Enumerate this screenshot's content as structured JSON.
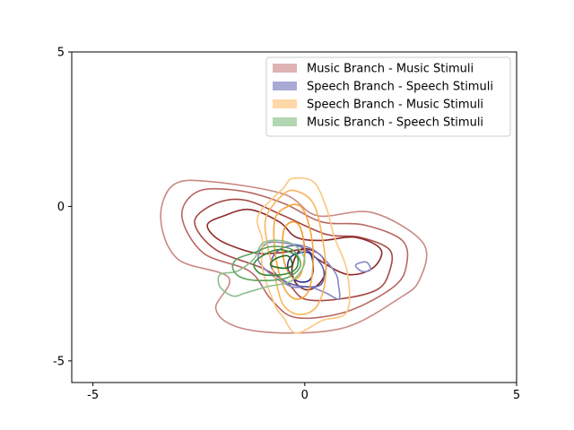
{
  "chart_data": {
    "type": "contour",
    "title": "",
    "xlabel": "",
    "ylabel": "",
    "xlim": [
      -5.5,
      5
    ],
    "ylim": [
      -5.7,
      5
    ],
    "xticks": [
      {
        "value": -5,
        "label": "-5"
      },
      {
        "value": 0,
        "label": "0"
      },
      {
        "value": 5,
        "label": "5"
      }
    ],
    "yticks": [
      {
        "value": 5,
        "label": "5"
      },
      {
        "value": 0,
        "label": "0"
      },
      {
        "value": -5,
        "label": "-5"
      }
    ],
    "grid": false,
    "legend_position": "upper-right",
    "series": [
      {
        "name": "Music Branch - Music Stimuli",
        "legend_color": "#dfb3b3",
        "levels": [
          {
            "color": "#c98985",
            "points": [
              [
                -3.4,
                -0.4
              ],
              [
                -3.1,
                0.7
              ],
              [
                -2.2,
                0.8
              ],
              [
                -0.5,
                0.4
              ],
              [
                0.3,
                -0.3
              ],
              [
                1.6,
                -0.2
              ],
              [
                2.8,
                -1.2
              ],
              [
                2.7,
                -2.4
              ],
              [
                2.2,
                -3.0
              ],
              [
                1.0,
                -3.9
              ],
              [
                -0.4,
                -4.1
              ],
              [
                -1.6,
                -3.9
              ],
              [
                -2.1,
                -3.3
              ],
              [
                -1.8,
                -2.3
              ],
              [
                -3.0,
                -1.7
              ]
            ]
          },
          {
            "color": "#b86762",
            "points": [
              [
                -2.9,
                -0.3
              ],
              [
                -2.5,
                0.5
              ],
              [
                -1.5,
                0.5
              ],
              [
                -0.5,
                0.1
              ],
              [
                0.4,
                -0.5
              ],
              [
                1.4,
                -0.6
              ],
              [
                2.3,
                -1.1
              ],
              [
                2.4,
                -1.9
              ],
              [
                2.1,
                -2.6
              ],
              [
                1.0,
                -3.4
              ],
              [
                -0.2,
                -3.6
              ],
              [
                -0.8,
                -3.0
              ],
              [
                -1.3,
                -2.1
              ],
              [
                -2.4,
                -1.5
              ]
            ]
          },
          {
            "color": "#a54944",
            "points": [
              [
                -2.6,
                -0.5
              ],
              [
                -2.1,
                0.1
              ],
              [
                -1.4,
                0.2
              ],
              [
                -0.5,
                -0.3
              ],
              [
                0.5,
                -0.9
              ],
              [
                1.3,
                -1.0
              ],
              [
                2.0,
                -1.4
              ],
              [
                2.0,
                -2.1
              ],
              [
                1.7,
                -2.7
              ],
              [
                0.8,
                -3.0
              ],
              [
                0.0,
                -3.0
              ],
              [
                -0.4,
                -2.5
              ],
              [
                -1.0,
                -2.0
              ],
              [
                -2.1,
                -1.4
              ]
            ]
          },
          {
            "color": "#8e2a2a",
            "points": [
              [
                -2.3,
                -0.6
              ],
              [
                -1.9,
                -0.3
              ],
              [
                -1.3,
                -0.1
              ],
              [
                -0.6,
                -0.5
              ],
              [
                -0.2,
                -1.0
              ],
              [
                0.4,
                -1.1
              ],
              [
                1.2,
                -1.0
              ],
              [
                1.8,
                -1.4
              ],
              [
                1.6,
                -2.0
              ],
              [
                1.0,
                -2.2
              ],
              [
                0.3,
                -1.7
              ],
              [
                0.0,
                -1.4
              ],
              [
                -0.6,
                -1.5
              ],
              [
                -1.2,
                -1.5
              ],
              [
                -2.0,
                -1.1
              ]
            ]
          },
          {
            "color": "#7e1d1d",
            "points": [
              [
                -0.1,
                -1.4
              ],
              [
                0.3,
                -1.5
              ],
              [
                0.5,
                -1.9
              ],
              [
                0.4,
                -2.4
              ],
              [
                0.1,
                -2.7
              ],
              [
                -0.2,
                -2.5
              ],
              [
                -0.3,
                -2.0
              ]
            ]
          }
        ]
      },
      {
        "name": "Speech Branch - Speech Stimuli",
        "legend_color": "#a9a9d6",
        "levels": [
          {
            "color": "#8787c4",
            "points": [
              [
                -0.9,
                -1.2
              ],
              [
                -0.4,
                -1.2
              ],
              [
                0.2,
                -1.4
              ],
              [
                0.7,
                -2.1
              ],
              [
                0.8,
                -2.6
              ],
              [
                0.8,
                -3.0
              ],
              [
                0.5,
                -2.8
              ],
              [
                0.1,
                -2.6
              ],
              [
                -0.3,
                -2.6
              ],
              [
                -0.8,
                -2.2
              ],
              [
                -1.1,
                -1.7
              ]
            ]
          },
          {
            "color": "#5d5db0",
            "points": [
              [
                -0.6,
                -1.4
              ],
              [
                -0.1,
                -1.3
              ],
              [
                0.4,
                -1.9
              ],
              [
                0.4,
                -2.5
              ],
              [
                0.0,
                -2.6
              ],
              [
                -0.5,
                -2.4
              ],
              [
                -0.8,
                -1.9
              ]
            ]
          },
          {
            "color": "#2d2d8c",
            "points": [
              [
                -0.3,
                -1.6
              ],
              [
                0.1,
                -1.5
              ],
              [
                0.2,
                -2.0
              ],
              [
                0.1,
                -2.4
              ],
              [
                -0.2,
                -2.4
              ],
              [
                -0.4,
                -2.0
              ]
            ]
          },
          {
            "color": "#8787c4",
            "points": [
              [
                1.2,
                -1.9
              ],
              [
                1.45,
                -1.8
              ],
              [
                1.55,
                -2.05
              ],
              [
                1.35,
                -2.1
              ]
            ]
          }
        ]
      },
      {
        "name": "Speech Branch - Music Stimuli",
        "legend_color": "#ffd8a8",
        "levels": [
          {
            "color": "#fdc680",
            "points": [
              [
                -1.1,
                -0.3
              ],
              [
                -0.5,
                0.6
              ],
              [
                -0.3,
                0.9
              ],
              [
                0.2,
                0.8
              ],
              [
                0.5,
                0.0
              ],
              [
                0.7,
                -1.0
              ],
              [
                1.0,
                -2.1
              ],
              [
                1.0,
                -3.4
              ],
              [
                0.4,
                -3.7
              ],
              [
                -0.2,
                -4.1
              ],
              [
                -0.5,
                -3.6
              ],
              [
                -0.7,
                -3.2
              ],
              [
                -1.0,
                -2.0
              ],
              [
                -1.0,
                -1.1
              ]
            ]
          },
          {
            "color": "#fbb55a",
            "points": [
              [
                -0.9,
                -0.3
              ],
              [
                -0.5,
                0.4
              ],
              [
                -0.2,
                0.5
              ],
              [
                0.2,
                0.1
              ],
              [
                0.4,
                -0.9
              ],
              [
                0.5,
                -2.2
              ],
              [
                0.3,
                -3.2
              ],
              [
                -0.1,
                -3.5
              ],
              [
                -0.5,
                -3.2
              ],
              [
                -0.7,
                -2.3
              ],
              [
                -0.9,
                -1.1
              ]
            ]
          },
          {
            "color": "#f9a63c",
            "points": [
              [
                -0.7,
                -0.4
              ],
              [
                -0.4,
                0.0
              ],
              [
                -0.1,
                0.0
              ],
              [
                0.1,
                -0.6
              ],
              [
                0.2,
                -1.6
              ],
              [
                0.1,
                -2.7
              ],
              [
                -0.2,
                -3.0
              ],
              [
                -0.5,
                -2.6
              ],
              [
                -0.7,
                -1.5
              ]
            ]
          },
          {
            "color": "#f59a2c",
            "points": [
              [
                -0.5,
                -0.8
              ],
              [
                -0.3,
                -0.5
              ],
              [
                -0.1,
                -0.7
              ],
              [
                0.0,
                -1.5
              ],
              [
                -0.1,
                -2.2
              ],
              [
                -0.3,
                -2.3
              ],
              [
                -0.5,
                -1.7
              ]
            ]
          }
        ]
      },
      {
        "name": "Music Branch - Speech Stimuli",
        "legend_color": "#b3d6b3",
        "levels": [
          {
            "color": "#8bbf8b",
            "points": [
              [
                -2.0,
                -2.2
              ],
              [
                -1.6,
                -2.1
              ],
              [
                -1.2,
                -1.7
              ],
              [
                -1.0,
                -1.2
              ],
              [
                -0.6,
                -1.1
              ],
              [
                -0.2,
                -1.3
              ],
              [
                0.0,
                -1.8
              ],
              [
                -0.3,
                -2.4
              ],
              [
                -0.9,
                -2.6
              ],
              [
                -1.4,
                -2.8
              ],
              [
                -1.7,
                -2.9
              ],
              [
                -2.0,
                -2.6
              ]
            ]
          },
          {
            "color": "#5ea45e",
            "points": [
              [
                -1.6,
                -1.7
              ],
              [
                -1.2,
                -1.5
              ],
              [
                -0.8,
                -1.3
              ],
              [
                -0.3,
                -1.4
              ],
              [
                -0.1,
                -1.9
              ],
              [
                -0.4,
                -2.3
              ],
              [
                -1.0,
                -2.4
              ],
              [
                -1.5,
                -2.3
              ],
              [
                -1.7,
                -2.0
              ]
            ]
          },
          {
            "color": "#3a8b3a",
            "points": [
              [
                -1.0,
                -1.6
              ],
              [
                -0.6,
                -1.4
              ],
              [
                -0.2,
                -1.6
              ],
              [
                -0.2,
                -2.0
              ],
              [
                -0.5,
                -2.2
              ],
              [
                -1.0,
                -2.2
              ],
              [
                -1.2,
                -1.9
              ]
            ]
          },
          {
            "color": "#1f6f1f",
            "points": [
              [
                -0.7,
                -1.7
              ],
              [
                -0.4,
                -1.6
              ],
              [
                -0.3,
                -1.9
              ],
              [
                -0.5,
                -2.0
              ],
              [
                -0.8,
                -1.9
              ]
            ]
          }
        ]
      }
    ]
  }
}
